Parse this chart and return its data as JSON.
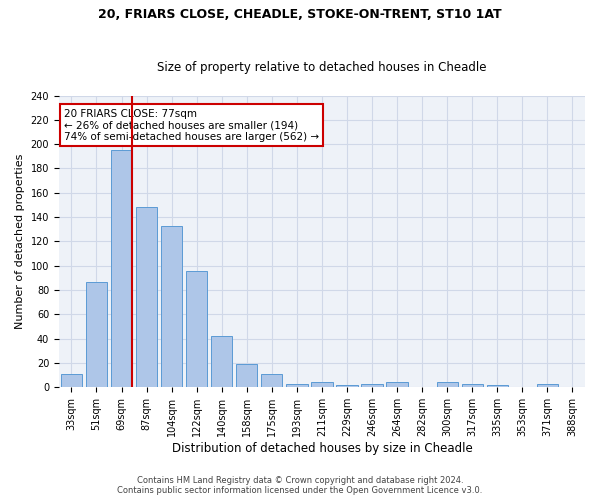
{
  "title_line1": "20, FRIARS CLOSE, CHEADLE, STOKE-ON-TRENT, ST10 1AT",
  "title_line2": "Size of property relative to detached houses in Cheadle",
  "xlabel": "Distribution of detached houses by size in Cheadle",
  "ylabel": "Number of detached properties",
  "categories": [
    "33sqm",
    "51sqm",
    "69sqm",
    "87sqm",
    "104sqm",
    "122sqm",
    "140sqm",
    "158sqm",
    "175sqm",
    "193sqm",
    "211sqm",
    "229sqm",
    "246sqm",
    "264sqm",
    "282sqm",
    "300sqm",
    "317sqm",
    "335sqm",
    "353sqm",
    "371sqm",
    "388sqm"
  ],
  "values": [
    11,
    87,
    195,
    148,
    133,
    96,
    42,
    19,
    11,
    3,
    4,
    2,
    3,
    4,
    0,
    4,
    3,
    2,
    0,
    3,
    0
  ],
  "bar_color": "#aec6e8",
  "bar_edge_color": "#5b9bd5",
  "red_line_x": 2.425,
  "annotation_text": "20 FRIARS CLOSE: 77sqm\n← 26% of detached houses are smaller (194)\n74% of semi-detached houses are larger (562) →",
  "annotation_box_color": "#ffffff",
  "annotation_box_edge_color": "#cc0000",
  "ylim": [
    0,
    240
  ],
  "yticks": [
    0,
    20,
    40,
    60,
    80,
    100,
    120,
    140,
    160,
    180,
    200,
    220,
    240
  ],
  "footer_line1": "Contains HM Land Registry data © Crown copyright and database right 2024.",
  "footer_line2": "Contains public sector information licensed under the Open Government Licence v3.0.",
  "grid_color": "#d0d8e8",
  "bg_color": "#eef2f8",
  "title1_fontsize": 9,
  "title2_fontsize": 8.5,
  "xlabel_fontsize": 8.5,
  "ylabel_fontsize": 8,
  "tick_fontsize": 7,
  "annotation_fontsize": 7.5,
  "footer_fontsize": 6
}
